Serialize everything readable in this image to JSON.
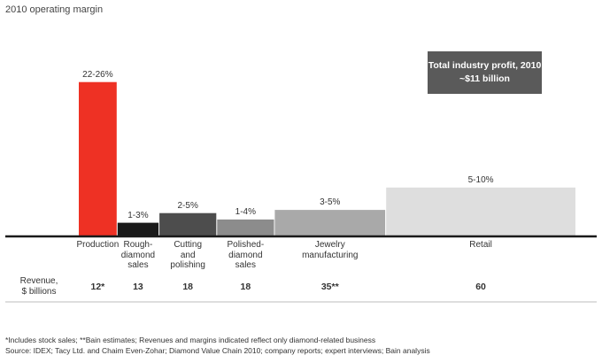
{
  "chart_data": {
    "type": "bar",
    "title": "2010 operating margin",
    "categories": [
      "Production",
      "Rough-\ndiamond\nsales",
      "Cutting\nand\npolishing",
      "Polished-\ndiamond\nsales",
      "Jewelry\nmanufacturing",
      "Retail"
    ],
    "margin_labels": [
      "22-26%",
      "1-3%",
      "2-5%",
      "1-4%",
      "3-5%",
      "5-10%"
    ],
    "margin_mid": [
      24,
      2,
      3.5,
      2.5,
      4,
      7.5
    ],
    "revenue": [
      12,
      13,
      18,
      18,
      35,
      60
    ],
    "revenue_labels": [
      "12*",
      "13",
      "18",
      "18",
      "35**",
      "60"
    ],
    "colors": [
      "#ee3124",
      "#1a1a1a",
      "#4d4d4d",
      "#8c8c8c",
      "#a9a9a9",
      "#dedede"
    ],
    "ylim": [
      0,
      25.2
    ],
    "revenue_row_label": "Revenue,\n$ billions",
    "grid": false
  },
  "callout": {
    "line1": "Total industry profit, 2010",
    "line2": "~$11 billion"
  },
  "footnotes": {
    "note": "*Includes stock sales; **Bain estimates; Revenues and margins indicated reflect only diamond-related business",
    "source": "Source: IDEX; Tacy Ltd. and Chaim Even-Zohar; Diamond Value Chain 2010; company reports; expert interviews; Bain analysis"
  }
}
